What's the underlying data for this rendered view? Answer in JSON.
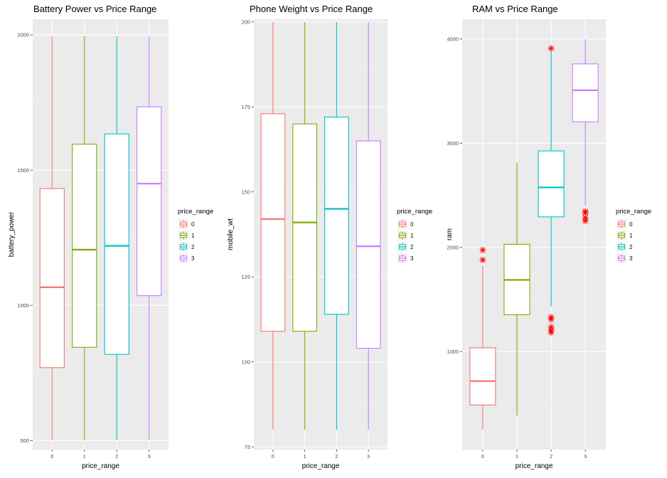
{
  "legend": {
    "title": "price_range",
    "labels": [
      "0",
      "1",
      "2",
      "3"
    ]
  },
  "colors": [
    "#F8766D",
    "#7CAE00",
    "#00BFC4",
    "#C77CFF"
  ],
  "outlier_color": "#FF0000",
  "chart_data": [
    {
      "type": "box",
      "title": "Battery Power vs Price Range",
      "xlabel": "price_range",
      "ylabel": "battery_power",
      "categories": [
        "0",
        "1",
        "2",
        "3"
      ],
      "ylim": [
        467,
        2058
      ],
      "yticks": [
        500,
        1000,
        1500,
        2000
      ],
      "grid": true,
      "legend_position": "right",
      "boxes": [
        {
          "min": 502,
          "q1": 770,
          "median": 1067,
          "q3": 1432,
          "max": 1994,
          "outliers": []
        },
        {
          "min": 501,
          "q1": 845,
          "median": 1206,
          "q3": 1596,
          "max": 1996,
          "outliers": []
        },
        {
          "min": 501,
          "q1": 819,
          "median": 1220,
          "q3": 1634,
          "max": 1994,
          "outliers": []
        },
        {
          "min": 503,
          "q1": 1036,
          "median": 1450,
          "q3": 1734,
          "max": 1994,
          "outliers": []
        }
      ]
    },
    {
      "type": "box",
      "title": "Phone Weight vs Price Range",
      "xlabel": "price_range",
      "ylabel": "mobile_wt",
      "categories": [
        "0",
        "1",
        "2",
        "3"
      ],
      "ylim": [
        74.2,
        200.8
      ],
      "yticks": [
        75,
        100,
        125,
        150,
        175,
        200
      ],
      "grid": true,
      "legend_position": "right",
      "boxes": [
        {
          "min": 80,
          "q1": 109,
          "median": 142,
          "q3": 173,
          "max": 200,
          "outliers": []
        },
        {
          "min": 80,
          "q1": 109,
          "median": 141,
          "q3": 170,
          "max": 200,
          "outliers": []
        },
        {
          "min": 80,
          "q1": 114,
          "median": 145,
          "q3": 172,
          "max": 200,
          "outliers": []
        },
        {
          "min": 80,
          "q1": 104,
          "median": 134,
          "q3": 165,
          "max": 200,
          "outliers": []
        }
      ]
    },
    {
      "type": "box",
      "title": "RAM vs Price Range",
      "xlabel": "price_range",
      "ylabel": "ram",
      "categories": [
        "0",
        "1",
        "2",
        "3"
      ],
      "ylim": [
        60,
        4190
      ],
      "yticks": [
        1000,
        2000,
        3000,
        4000
      ],
      "grid": true,
      "legend_position": "right",
      "boxes": [
        {
          "min": 256,
          "q1": 488,
          "median": 717,
          "q3": 1037,
          "max": 1825,
          "outliers": [
            1880,
            1975
          ]
        },
        {
          "min": 387,
          "q1": 1354,
          "median": 1688,
          "q3": 2030,
          "max": 2811,
          "outliers": []
        },
        {
          "min": 1433,
          "q1": 2293,
          "median": 2576,
          "q3": 2926,
          "max": 3890,
          "outliers": [
            1185,
            1205,
            1235,
            1310,
            1330,
            3910
          ]
        },
        {
          "min": 2400,
          "q1": 3205,
          "median": 3508,
          "q3": 3761,
          "max": 3998,
          "outliers": [
            2255,
            2285,
            2330,
            2345
          ]
        }
      ]
    }
  ]
}
